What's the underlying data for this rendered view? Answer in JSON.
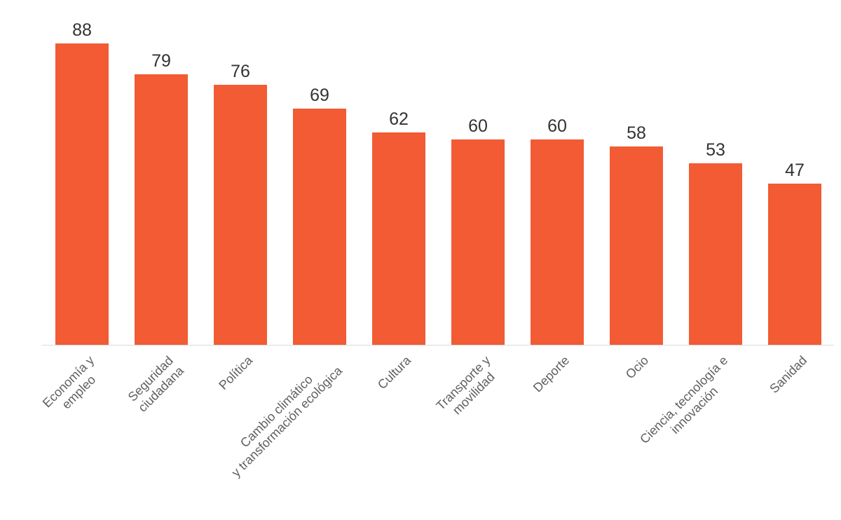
{
  "chart_data": {
    "type": "bar",
    "categories": [
      "Economía y\nempleo",
      "Seguridad\nciudadana",
      "Política",
      "Cambio climático\ny transformación ecológica",
      "Cultura",
      "Transporte y\nmovilidad",
      "Deporte",
      "Ocio",
      "Ciencia, tecnología e\ninnovación",
      "Sanidad"
    ],
    "values": [
      88,
      79,
      76,
      69,
      62,
      60,
      60,
      58,
      53,
      47
    ],
    "value_labels": [
      "88",
      "79",
      "76",
      "69",
      "62",
      "60",
      "60",
      "58",
      "53",
      "47"
    ],
    "title": "",
    "xlabel": "",
    "ylabel": "",
    "ylim": [
      0,
      90
    ],
    "grid": "off",
    "legend": "none",
    "bar_color": "#F25B33",
    "value_label_color": "#333333",
    "category_label_color": "#5f5f5f",
    "axis_line_color": "#d9d9d9"
  }
}
